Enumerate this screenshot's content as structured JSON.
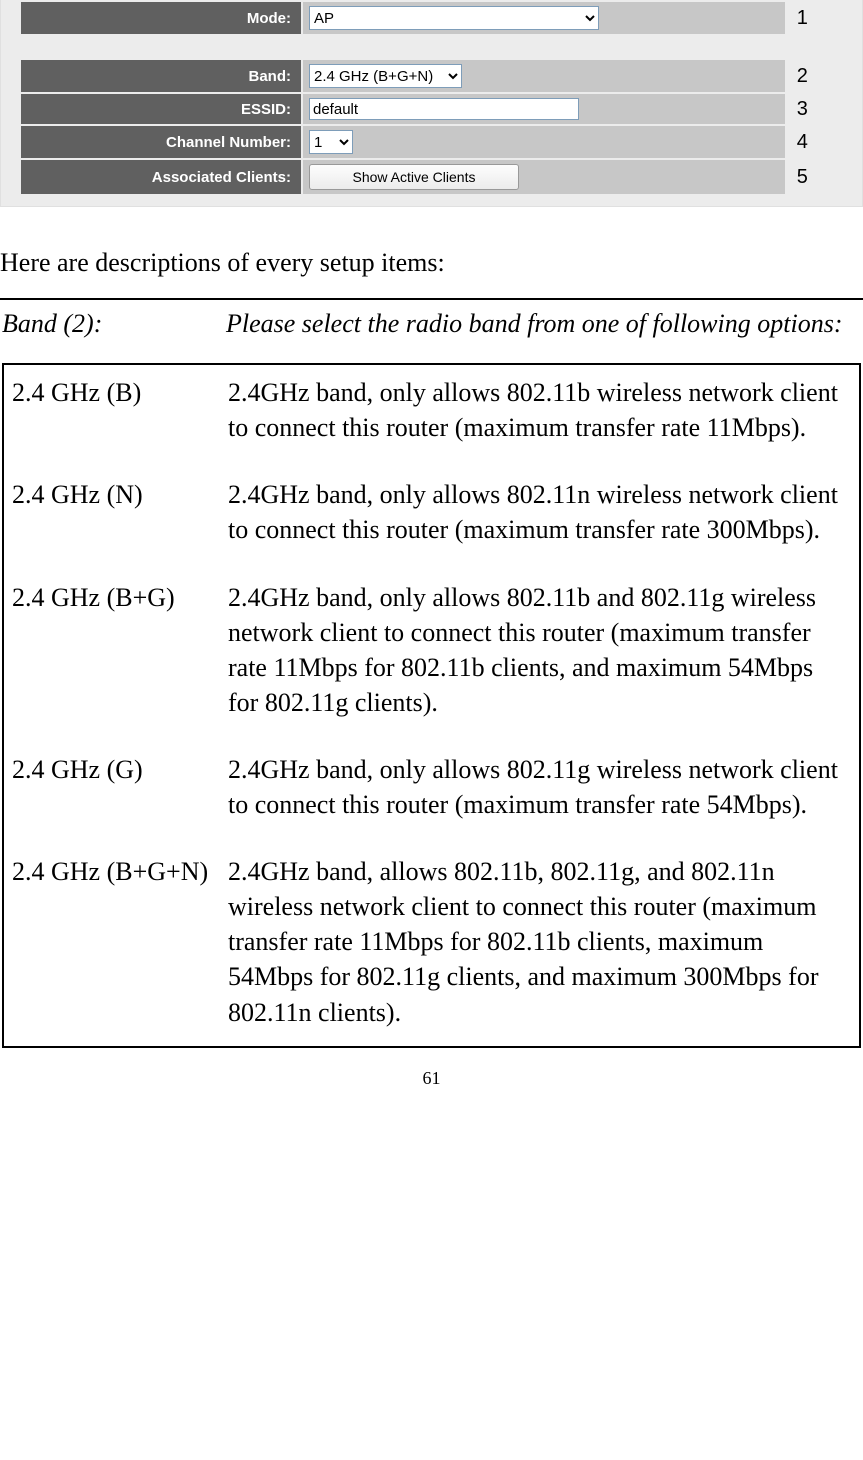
{
  "ui": {
    "rows": [
      {
        "label": "Mode:",
        "annot": "1"
      },
      {
        "label": "Band:",
        "annot": "2"
      },
      {
        "label": "ESSID:",
        "annot": "3"
      },
      {
        "label": "Channel Number:",
        "annot": "4"
      },
      {
        "label": "Associated Clients:",
        "annot": "5"
      }
    ],
    "mode_value": "AP",
    "band_value": "2.4 GHz (B+G+N)",
    "essid_value": "default",
    "channel_value": "1",
    "button_label": "Show Active Clients"
  },
  "intro": "Here are descriptions of every setup items:",
  "setup": {
    "term": "Band (2):",
    "desc": "Please select the radio band from one of following options:"
  },
  "options": [
    {
      "term": "2.4 GHz (B)",
      "desc": "2.4GHz band, only allows 802.11b wireless network client to connect this router (maximum transfer rate 11Mbps)."
    },
    {
      "term": "2.4 GHz (N)",
      "desc": "2.4GHz band, only allows 802.11n wireless network client to connect this router (maximum transfer rate 300Mbps)."
    },
    {
      "term": "2.4 GHz (B+G)",
      "desc": "2.4GHz band, only allows 802.11b and 802.11g wireless network client to connect this router (maximum transfer rate 11Mbps for 802.11b clients, and maximum 54Mbps for 802.11g clients)."
    },
    {
      "term": "2.4 GHz (G)",
      "desc": "2.4GHz band, only allows 802.11g wireless network client to connect this router (maximum transfer rate 54Mbps)."
    },
    {
      "term": "2.4 GHz (B+G+N)",
      "desc": "2.4GHz band, allows 802.11b, 802.11g, and 802.11n wireless network client to connect this router (maximum transfer rate 11Mbps for 802.11b clients, maximum 54Mbps for 802.11g clients, and maximum 300Mbps for 802.11n clients)."
    }
  ],
  "page_number": "61"
}
